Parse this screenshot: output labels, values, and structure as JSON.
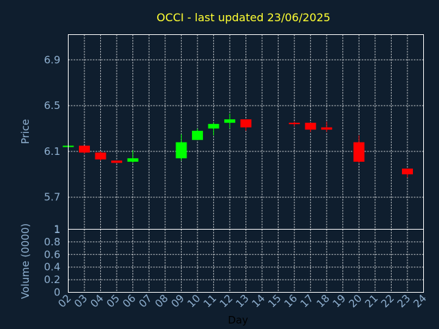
{
  "chart_data": {
    "type": "candlestick",
    "title": "OCCI - last updated 23/06/2025",
    "xlabel": "Day",
    "ylabel": "Price",
    "ylabel_volume": "Volume (0000)",
    "x_ticks": [
      "02",
      "03",
      "04",
      "05",
      "06",
      "07",
      "08",
      "09",
      "10",
      "11",
      "12",
      "13",
      "14",
      "15",
      "16",
      "17",
      "18",
      "19",
      "20",
      "21",
      "22",
      "23",
      "24"
    ],
    "price_ylim": [
      5.42,
      7.12
    ],
    "price_yticks": [
      "5.7",
      "6.1",
      "6.5",
      "6.9"
    ],
    "volume_ylim": [
      0,
      1
    ],
    "volume_yticks": [
      "0",
      "0.2",
      "0.4",
      "0.6",
      "0.8",
      "1"
    ],
    "price_top_label": "1",
    "grid": true,
    "colors": {
      "background": "#0f1e2e",
      "up": "#00ff00",
      "down": "#ff0000",
      "frame": "#ffffff",
      "title": "#ffff33",
      "labels": "#8fb0d0"
    },
    "candles": [
      {
        "day": "02",
        "open": 6.14,
        "high": 6.15,
        "low": 6.13,
        "close": 6.15
      },
      {
        "day": "03",
        "open": 6.15,
        "high": 6.15,
        "low": 6.08,
        "close": 6.09
      },
      {
        "day": "04",
        "open": 6.09,
        "high": 6.1,
        "low": 6.02,
        "close": 6.03
      },
      {
        "day": "05",
        "open": 6.02,
        "high": 6.02,
        "low": 6.0,
        "close": 6.0
      },
      {
        "day": "06",
        "open": 6.01,
        "high": 6.11,
        "low": 6.0,
        "close": 6.04
      },
      {
        "day": "09",
        "open": 6.04,
        "high": 6.25,
        "low": 6.02,
        "close": 6.18
      },
      {
        "day": "10",
        "open": 6.2,
        "high": 6.3,
        "low": 6.2,
        "close": 6.28
      },
      {
        "day": "11",
        "open": 6.3,
        "high": 6.35,
        "low": 6.24,
        "close": 6.34
      },
      {
        "day": "12",
        "open": 6.35,
        "high": 6.43,
        "low": 6.3,
        "close": 6.38
      },
      {
        "day": "13",
        "open": 6.38,
        "high": 6.38,
        "low": 6.28,
        "close": 6.31
      },
      {
        "day": "16",
        "open": 6.35,
        "high": 6.36,
        "low": 6.32,
        "close": 6.34
      },
      {
        "day": "17",
        "open": 6.35,
        "high": 6.35,
        "low": 6.27,
        "close": 6.29
      },
      {
        "day": "18",
        "open": 6.31,
        "high": 6.36,
        "low": 6.27,
        "close": 6.29
      },
      {
        "day": "20",
        "open": 6.18,
        "high": 6.24,
        "low": 6.0,
        "close": 6.01
      },
      {
        "day": "23",
        "open": 5.95,
        "high": 5.95,
        "low": 5.87,
        "close": 5.9
      }
    ]
  }
}
